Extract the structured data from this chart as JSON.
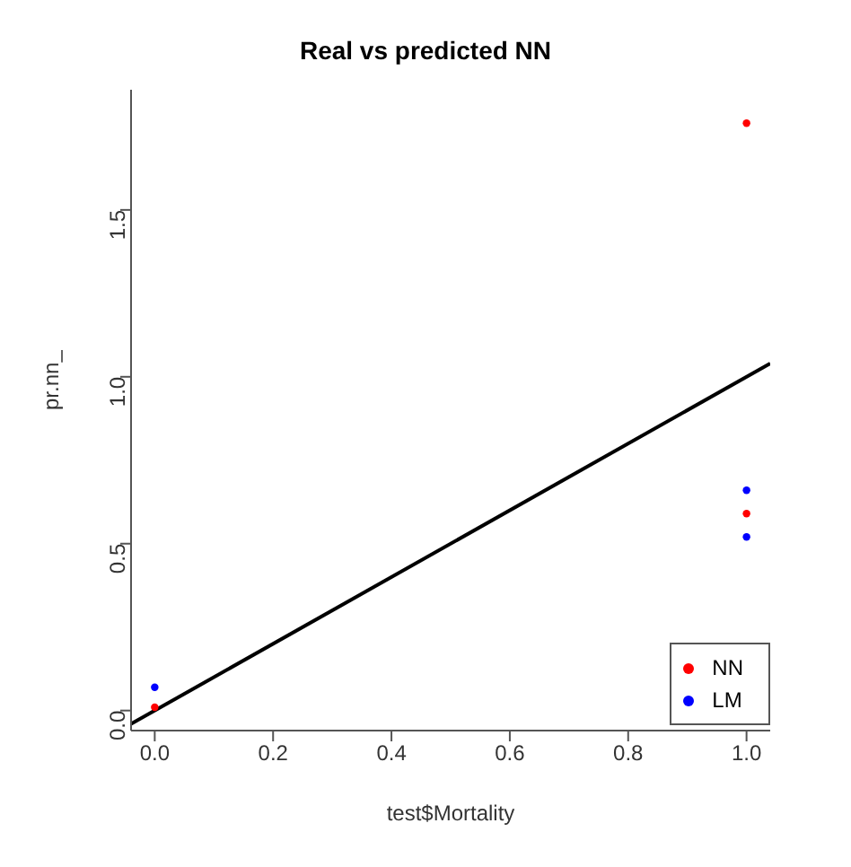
{
  "chart_data": {
    "type": "scatter",
    "title": "Real vs predicted NN",
    "xlabel": "test$Mortality",
    "ylabel": "pr.nn_",
    "xlim": [
      -0.04,
      1.04
    ],
    "ylim": [
      -0.06,
      1.86
    ],
    "xticks": [
      {
        "value": 0,
        "label": "0.0"
      },
      {
        "value": 0.2,
        "label": "0.2"
      },
      {
        "value": 0.4,
        "label": "0.4"
      },
      {
        "value": 0.6,
        "label": "0.6"
      },
      {
        "value": 0.8,
        "label": "0.8"
      },
      {
        "value": 1,
        "label": "1.0"
      }
    ],
    "yticks": [
      {
        "value": 0,
        "label": "0.0"
      },
      {
        "value": 0.5,
        "label": "0.5"
      },
      {
        "value": 1,
        "label": "1.0"
      },
      {
        "value": 1.5,
        "label": "1.5"
      }
    ],
    "grid": false,
    "legend": "bottom right",
    "marker": "circle",
    "series": [
      {
        "type": "line",
        "x": [
          -0.04,
          1.04
        ],
        "values": [
          -0.04,
          1.04
        ],
        "color": "#000000",
        "line_style": "solid",
        "marker": "none"
      },
      {
        "name": "NN",
        "color": "#ff0000",
        "x": [
          0,
          1,
          1
        ],
        "values": [
          0.01,
          1.76,
          0.59
        ]
      },
      {
        "name": "LM",
        "color": "#0000ff",
        "x": [
          0,
          1,
          1
        ],
        "values": [
          0.07,
          0.66,
          0.52
        ]
      }
    ]
  }
}
